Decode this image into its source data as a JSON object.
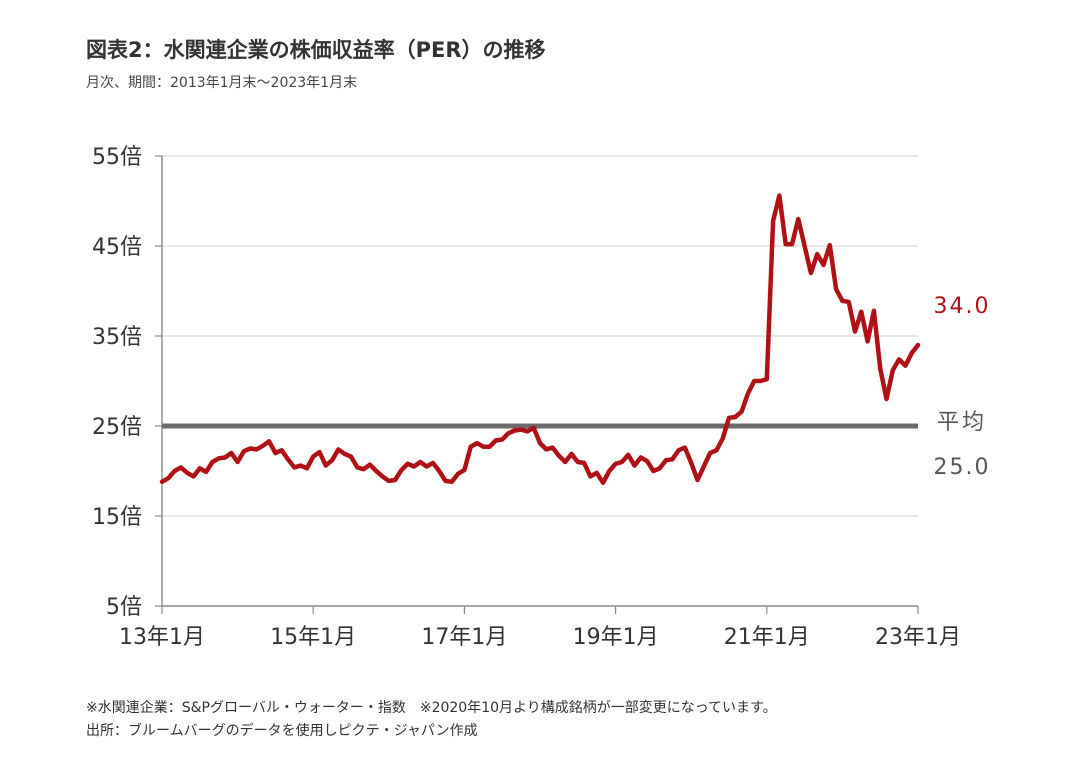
{
  "header": {
    "title": "図表2：水関連企業の株価収益率（PER）の推移",
    "subtitle": "月次、期間：2013年1月末～2023年1月末"
  },
  "notes": {
    "line1": "※水関連企業：S&Pグローバル・ウォーター・指数　※2020年10月より構成銘柄が一部変更になっています。",
    "line2": "出所：ブルームバーグのデータを使用しピクテ・ジャパン作成"
  },
  "colors": {
    "series": "#b01116",
    "average": "#6b6b6b",
    "grid": "#d0d0d0",
    "axis": "#888888",
    "text": "#333333"
  },
  "chart_data": {
    "type": "line",
    "title": "",
    "xlabel": "",
    "ylabel": "",
    "ylim": [
      5,
      55
    ],
    "yticks": [
      5,
      15,
      25,
      35,
      45,
      55
    ],
    "ytick_labels": [
      "5倍",
      "15倍",
      "25倍",
      "35倍",
      "45倍",
      "55倍"
    ],
    "xlim": [
      0,
      120
    ],
    "xticks": [
      0,
      24,
      48,
      72,
      96,
      120
    ],
    "xtick_labels": [
      "13年1月",
      "15年1月",
      "17年1月",
      "19年1月",
      "21年1月",
      "23年1月"
    ],
    "grid": true,
    "series": [
      {
        "name": "",
        "end_label": "34.0",
        "points": [
          [
            0,
            18.8
          ],
          [
            1,
            19.2
          ],
          [
            2,
            20.0
          ],
          [
            3,
            20.4
          ],
          [
            4,
            19.8
          ],
          [
            5,
            19.4
          ],
          [
            6,
            20.3
          ],
          [
            7,
            19.9
          ],
          [
            8,
            21.0
          ],
          [
            9,
            21.4
          ],
          [
            10,
            21.5
          ],
          [
            11,
            22.0
          ],
          [
            12,
            21.0
          ],
          [
            13,
            22.2
          ],
          [
            14,
            22.5
          ],
          [
            15,
            22.4
          ],
          [
            16,
            22.8
          ],
          [
            17,
            23.3
          ],
          [
            18,
            22.0
          ],
          [
            19,
            22.3
          ],
          [
            20,
            21.3
          ],
          [
            21,
            20.4
          ],
          [
            22,
            20.6
          ],
          [
            23,
            20.3
          ],
          [
            24,
            21.6
          ],
          [
            25,
            22.1
          ],
          [
            26,
            20.6
          ],
          [
            27,
            21.2
          ],
          [
            28,
            22.4
          ],
          [
            29,
            21.9
          ],
          [
            30,
            21.6
          ],
          [
            31,
            20.4
          ],
          [
            32,
            20.2
          ],
          [
            33,
            20.7
          ],
          [
            34,
            20.0
          ],
          [
            35,
            19.4
          ],
          [
            36,
            18.9
          ],
          [
            37,
            19.0
          ],
          [
            38,
            20.1
          ],
          [
            39,
            20.8
          ],
          [
            40,
            20.5
          ],
          [
            41,
            21.0
          ],
          [
            42,
            20.5
          ],
          [
            43,
            20.9
          ],
          [
            44,
            20.0
          ],
          [
            45,
            18.9
          ],
          [
            46,
            18.8
          ],
          [
            47,
            19.7
          ],
          [
            48,
            20.1
          ],
          [
            49,
            22.7
          ],
          [
            50,
            23.1
          ],
          [
            51,
            22.7
          ],
          [
            52,
            22.7
          ],
          [
            53,
            23.4
          ],
          [
            54,
            23.5
          ],
          [
            55,
            24.2
          ],
          [
            56,
            24.5
          ],
          [
            57,
            24.6
          ],
          [
            58,
            24.4
          ],
          [
            59,
            24.8
          ],
          [
            60,
            23.1
          ],
          [
            61,
            22.4
          ],
          [
            62,
            22.6
          ],
          [
            63,
            21.7
          ],
          [
            64,
            21.0
          ],
          [
            65,
            21.9
          ],
          [
            66,
            21.0
          ],
          [
            67,
            20.9
          ],
          [
            68,
            19.4
          ],
          [
            69,
            19.8
          ],
          [
            70,
            18.7
          ],
          [
            71,
            20.0
          ],
          [
            72,
            20.8
          ],
          [
            73,
            21.0
          ],
          [
            74,
            21.8
          ],
          [
            75,
            20.6
          ],
          [
            76,
            21.5
          ],
          [
            77,
            21.1
          ],
          [
            78,
            20.0
          ],
          [
            79,
            20.3
          ],
          [
            80,
            21.2
          ],
          [
            81,
            21.3
          ],
          [
            82,
            22.3
          ],
          [
            83,
            22.6
          ],
          [
            84,
            20.9
          ],
          [
            85,
            19.0
          ],
          [
            86,
            20.5
          ],
          [
            87,
            22.0
          ],
          [
            88,
            22.3
          ],
          [
            89,
            23.6
          ],
          [
            90,
            25.9
          ],
          [
            91,
            26.0
          ],
          [
            92,
            26.6
          ],
          [
            93,
            28.6
          ],
          [
            94,
            30.0
          ],
          [
            95,
            30.0
          ],
          [
            96,
            30.2
          ],
          [
            97,
            47.8
          ],
          [
            98,
            50.6
          ],
          [
            99,
            45.2
          ],
          [
            100,
            45.2
          ],
          [
            101,
            48.0
          ],
          [
            102,
            45.0
          ],
          [
            103,
            42.0
          ],
          [
            104,
            44.1
          ],
          [
            105,
            42.9
          ],
          [
            106,
            45.1
          ],
          [
            107,
            40.2
          ],
          [
            108,
            38.9
          ],
          [
            109,
            38.8
          ],
          [
            110,
            35.5
          ],
          [
            111,
            37.7
          ],
          [
            112,
            34.4
          ],
          [
            113,
            37.8
          ],
          [
            114,
            31.4
          ],
          [
            115,
            28.0
          ],
          [
            116,
            31.2
          ],
          [
            117,
            32.4
          ],
          [
            118,
            31.7
          ],
          [
            119,
            33.1
          ],
          [
            120,
            34.0
          ]
        ]
      }
    ],
    "average": {
      "label": "平均",
      "value": 25.0,
      "value_label": "25.0"
    }
  }
}
